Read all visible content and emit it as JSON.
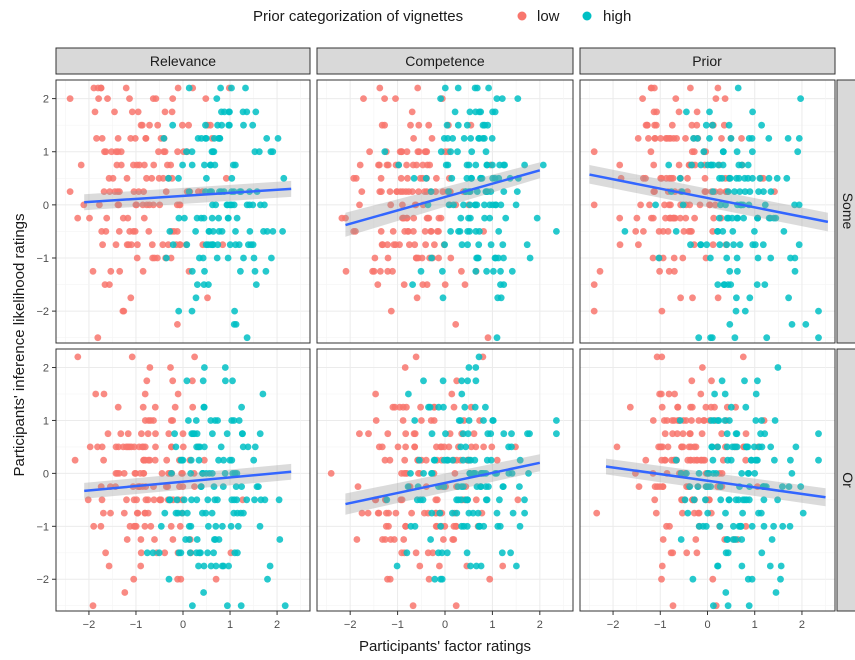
{
  "chart_data": {
    "type": "scatter",
    "legend": {
      "title": "Prior categorization of vignettes",
      "placement": "top",
      "entries": [
        {
          "label": "low",
          "color": "#F8766D"
        },
        {
          "label": "high",
          "color": "#00BFC4"
        }
      ]
    },
    "xlabel": "Participants' factor ratings",
    "ylabel": "Participants' inference likelihood ratings",
    "xlim": [
      -2.7,
      2.7
    ],
    "ylim": [
      -2.6,
      2.35
    ],
    "x_ticks": [
      -2,
      -1,
      0,
      1,
      2
    ],
    "y_ticks": [
      -2,
      -1,
      0,
      1,
      2
    ],
    "x_tick_labels": [
      "−2",
      "−1",
      "0",
      "1",
      "2"
    ],
    "y_tick_labels": [
      "−2",
      "−1",
      "0",
      "1",
      "2"
    ],
    "grid": true,
    "trend_color": "#3366FF",
    "column_facets": [
      "Relevance",
      "Competence",
      "Prior"
    ],
    "row_facets": [
      "Some",
      "Or"
    ],
    "panels": [
      {
        "row": "Some",
        "col": "Relevance",
        "trend": {
          "x": [
            -2.1,
            2.3
          ],
          "y": [
            0.05,
            0.3
          ],
          "se_lower": [
            -0.1,
            0.15
          ],
          "se_upper": [
            0.2,
            0.45
          ]
        },
        "clusters": [
          {
            "series": "low",
            "n": 150,
            "x_mean": -0.9,
            "x_sd": 0.65,
            "y_mean": 0.3,
            "y_sd": 1.05,
            "seed": 11
          },
          {
            "series": "high",
            "n": 140,
            "x_mean": 0.85,
            "x_sd": 0.55,
            "y_mean": 0.15,
            "y_sd": 1.0,
            "seed": 12
          }
        ]
      },
      {
        "row": "Some",
        "col": "Competence",
        "trend": {
          "x": [
            -2.1,
            2.0
          ],
          "y": [
            -0.38,
            0.65
          ],
          "se_lower": [
            -0.6,
            0.5
          ],
          "se_upper": [
            -0.15,
            0.8
          ]
        },
        "clusters": [
          {
            "series": "low",
            "n": 150,
            "x_mean": -0.7,
            "x_sd": 0.65,
            "y_mean": 0.1,
            "y_sd": 1.05,
            "seed": 21
          },
          {
            "series": "high",
            "n": 140,
            "x_mean": 0.6,
            "x_sd": 0.6,
            "y_mean": 0.4,
            "y_sd": 0.95,
            "seed": 22
          }
        ]
      },
      {
        "row": "Some",
        "col": "Prior",
        "trend": {
          "x": [
            -2.5,
            2.55
          ],
          "y": [
            0.57,
            -0.32
          ],
          "se_lower": [
            0.4,
            -0.5
          ],
          "se_upper": [
            0.75,
            -0.15
          ]
        },
        "clusters": [
          {
            "series": "low",
            "n": 150,
            "x_mean": -0.6,
            "x_sd": 0.7,
            "y_mean": 0.35,
            "y_sd": 1.0,
            "seed": 31
          },
          {
            "series": "high",
            "n": 140,
            "x_mean": 0.6,
            "x_sd": 0.75,
            "y_mean": 0.0,
            "y_sd": 1.1,
            "seed": 32
          }
        ]
      },
      {
        "row": "Or",
        "col": "Relevance",
        "trend": {
          "x": [
            -2.1,
            2.3
          ],
          "y": [
            -0.33,
            0.03
          ],
          "se_lower": [
            -0.48,
            -0.12
          ],
          "se_upper": [
            -0.18,
            0.18
          ]
        },
        "clusters": [
          {
            "series": "low",
            "n": 150,
            "x_mean": -0.7,
            "x_sd": 0.6,
            "y_mean": -0.05,
            "y_sd": 1.05,
            "seed": 41
          },
          {
            "series": "high",
            "n": 140,
            "x_mean": 0.6,
            "x_sd": 0.6,
            "y_mean": -0.25,
            "y_sd": 1.05,
            "seed": 42
          }
        ]
      },
      {
        "row": "Or",
        "col": "Competence",
        "trend": {
          "x": [
            -2.1,
            2.0
          ],
          "y": [
            -0.58,
            0.2
          ],
          "se_lower": [
            -0.78,
            0.04
          ],
          "se_upper": [
            -0.38,
            0.36
          ]
        },
        "clusters": [
          {
            "series": "low",
            "n": 150,
            "x_mean": -0.5,
            "x_sd": 0.7,
            "y_mean": -0.2,
            "y_sd": 1.0,
            "seed": 51
          },
          {
            "series": "high",
            "n": 140,
            "x_mean": 0.6,
            "x_sd": 0.65,
            "y_mean": 0.0,
            "y_sd": 1.05,
            "seed": 52
          }
        ]
      },
      {
        "row": "Or",
        "col": "Prior",
        "trend": {
          "x": [
            -2.15,
            2.5
          ],
          "y": [
            0.13,
            -0.45
          ],
          "se_lower": [
            -0.02,
            -0.62
          ],
          "se_upper": [
            0.28,
            -0.28
          ]
        },
        "clusters": [
          {
            "series": "low",
            "n": 150,
            "x_mean": -0.5,
            "x_sd": 0.7,
            "y_mean": 0.25,
            "y_sd": 0.9,
            "seed": 61
          },
          {
            "series": "high",
            "n": 140,
            "x_mean": 0.7,
            "x_sd": 0.65,
            "y_mean": -0.25,
            "y_sd": 1.05,
            "seed": 62
          }
        ]
      }
    ]
  }
}
